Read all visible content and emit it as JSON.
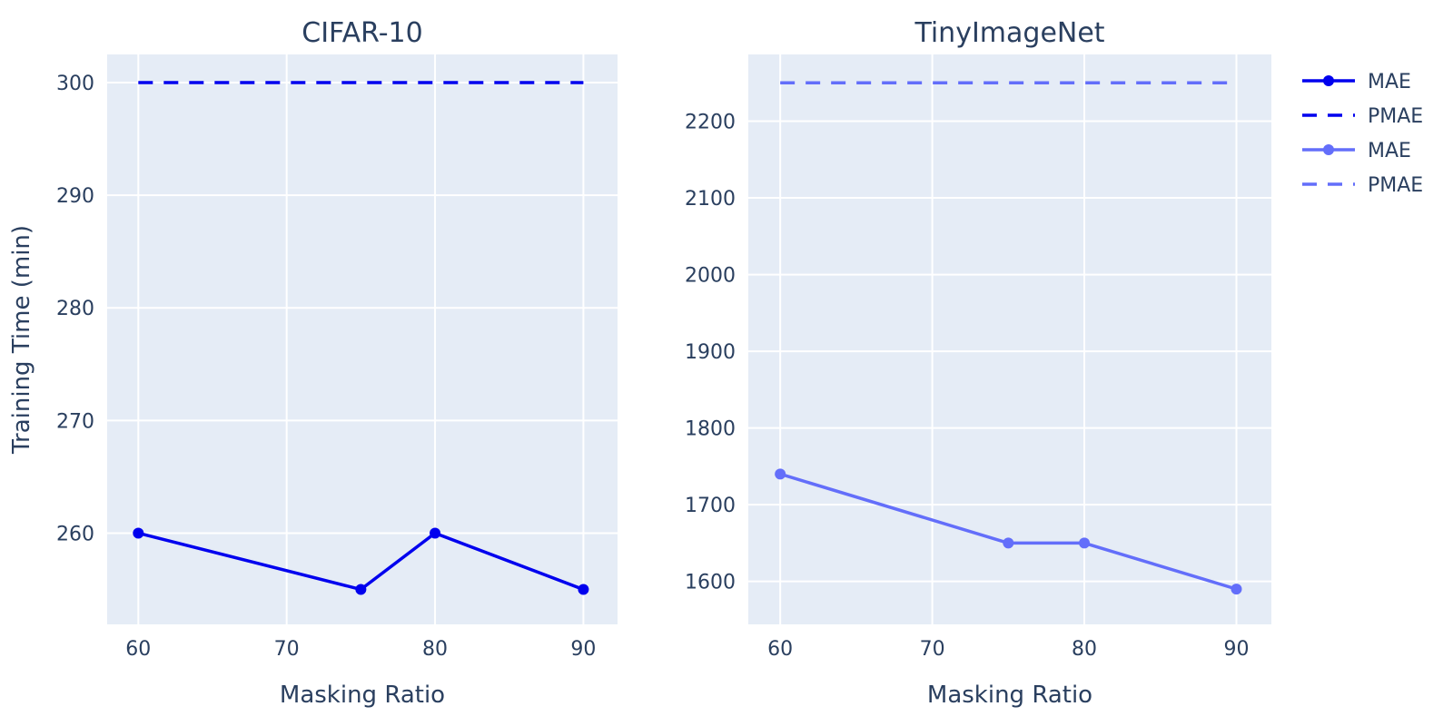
{
  "chart_data": [
    {
      "type": "line",
      "title": "CIFAR-10",
      "xlabel": "Masking Ratio",
      "ylabel": "Training Time (min)",
      "xlim": [
        57.9,
        92.3
      ],
      "ylim": [
        251.9,
        302.5
      ],
      "xticks": [
        60,
        70,
        80,
        90
      ],
      "yticks": [
        260,
        270,
        280,
        290,
        300
      ],
      "grid": true,
      "series": [
        {
          "name": "MAE",
          "style": "solid-markers",
          "color": "#0000ee",
          "x": [
            60,
            75,
            80,
            90
          ],
          "y": [
            260,
            255,
            260,
            255
          ]
        },
        {
          "name": "PMAE",
          "style": "dashed",
          "color": "#0000ee",
          "x": [
            60,
            90
          ],
          "y": [
            300,
            300
          ]
        }
      ]
    },
    {
      "type": "line",
      "title": "TinyImageNet",
      "xlabel": "Masking Ratio",
      "ylabel": "",
      "xlim": [
        57.9,
        92.3
      ],
      "ylim": [
        1544,
        2287
      ],
      "xticks": [
        60,
        70,
        80,
        90
      ],
      "yticks": [
        1600,
        1700,
        1800,
        1900,
        2000,
        2100,
        2200
      ],
      "grid": true,
      "series": [
        {
          "name": "MAE",
          "style": "solid-markers",
          "color": "#636efa",
          "x": [
            60,
            75,
            80,
            90
          ],
          "y": [
            1740,
            1650,
            1650,
            1590
          ]
        },
        {
          "name": "PMAE",
          "style": "dashed",
          "color": "#636efa",
          "x": [
            60,
            90
          ],
          "y": [
            2250,
            2250
          ]
        }
      ]
    }
  ],
  "legend": {
    "position": "top-right",
    "entries": [
      {
        "label": "MAE",
        "style": "solid-markers",
        "color": "#0000ee"
      },
      {
        "label": "PMAE",
        "style": "dashed",
        "color": "#0000ee"
      },
      {
        "label": "MAE",
        "style": "solid-markers",
        "color": "#636efa"
      },
      {
        "label": "PMAE",
        "style": "dashed",
        "color": "#636efa"
      }
    ]
  },
  "colors": {
    "plot_bg": "#e5ecf6",
    "grid": "#ffffff",
    "text": "#2a3f5f"
  }
}
